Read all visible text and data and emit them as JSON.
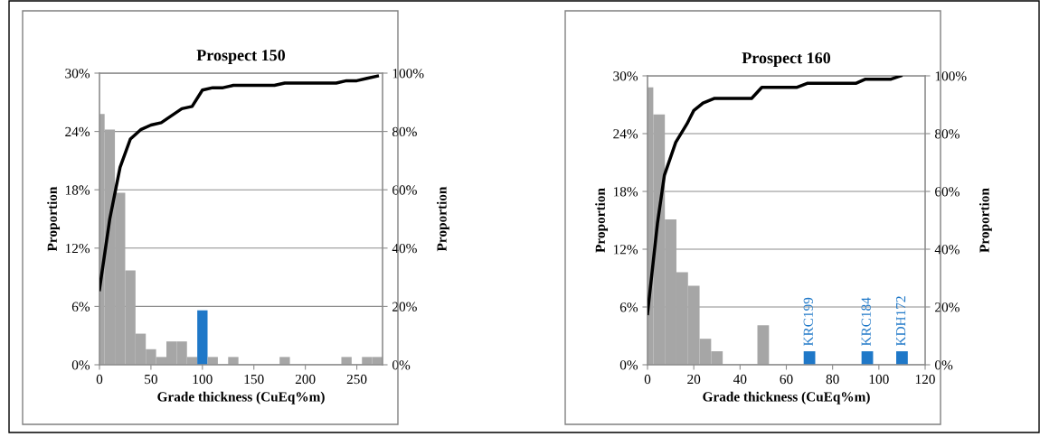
{
  "chart_data": [
    {
      "type": "histogram",
      "title": "Prospect 150",
      "xlabel": "Grade thickness (CuEq%m)",
      "ylabel": "Proportion",
      "y2label": "Proportion",
      "bins": [
        0,
        5,
        15,
        25,
        35,
        45,
        55,
        65,
        75,
        85,
        95,
        105,
        115,
        125,
        135,
        175,
        185,
        235,
        245,
        255,
        265,
        275
      ],
      "values": [
        25.8,
        24.2,
        17.7,
        9.7,
        3.2,
        1.6,
        0.8,
        2.4,
        2.4,
        0.8,
        5.6,
        0.8,
        0,
        0.8,
        0,
        0.8,
        0,
        0.8,
        0,
        0.8,
        0.8
      ],
      "colors": [
        "#a6a6a6",
        "#a6a6a6",
        "#a6a6a6",
        "#a6a6a6",
        "#a6a6a6",
        "#a6a6a6",
        "#a6a6a6",
        "#a6a6a6",
        "#a6a6a6",
        "#a6a6a6",
        "#1f78c8",
        "#a6a6a6",
        "#a6a6a6",
        "#a6a6a6",
        "#a6a6a6",
        "#a6a6a6",
        "#a6a6a6",
        "#a6a6a6",
        "#a6a6a6",
        "#a6a6a6",
        "#a6a6a6"
      ],
      "xlim": [
        0,
        275
      ],
      "xticks": [
        0,
        50,
        100,
        150,
        200,
        250
      ],
      "ylim": [
        0,
        30
      ],
      "yticks": [
        {
          "value": 0,
          "label": "0%"
        },
        {
          "value": 6,
          "label": "6%"
        },
        {
          "value": 12,
          "label": "12%"
        },
        {
          "value": 18,
          "label": "18%"
        },
        {
          "value": 24,
          "label": "24%"
        },
        {
          "value": 30,
          "label": "30%"
        }
      ],
      "y2lim": [
        0,
        100
      ],
      "y2ticks": [
        {
          "value": 0,
          "label": "0%"
        },
        {
          "value": 20,
          "label": "20%"
        },
        {
          "value": 40,
          "label": "40%"
        },
        {
          "value": 60,
          "label": "60%"
        },
        {
          "value": 80,
          "label": "80%"
        },
        {
          "value": 100,
          "label": "100%"
        }
      ],
      "grid": "y",
      "series": [
        {
          "type": "line",
          "axis": "y2",
          "color": "#000000",
          "x": [
            0,
            10,
            20,
            30,
            40,
            50,
            60,
            70,
            80,
            90,
            100,
            110,
            120,
            130,
            140,
            150,
            160,
            170,
            180,
            190,
            200,
            210,
            220,
            230,
            240,
            250,
            260,
            270
          ],
          "values": [
            25.8,
            50,
            67.7,
            77.4,
            80.6,
            82.2,
            83,
            85.4,
            87.8,
            88.6,
            94.2,
            95,
            95,
            95.8,
            95.8,
            95.8,
            95.8,
            95.8,
            96.6,
            96.6,
            96.6,
            96.6,
            96.6,
            96.6,
            97.4,
            97.4,
            98.2,
            99
          ]
        }
      ]
    },
    {
      "type": "histogram",
      "title": "Prospect 160",
      "xlabel": "Grade thickness (CuEq%m)",
      "ylabel": "Proportion",
      "y2label": "Proportion",
      "bins": [
        0,
        2.5,
        7.5,
        12.5,
        17.5,
        22.5,
        27.5,
        32.5,
        47.5,
        52.5,
        67.5,
        72.5,
        92.5,
        97.5,
        107.5,
        112.5
      ],
      "values": [
        28.8,
        26,
        15.1,
        9.6,
        8.2,
        2.7,
        1.4,
        0,
        4.1,
        0,
        1.4,
        0,
        1.4,
        0,
        1.4
      ],
      "colors": [
        "#a6a6a6",
        "#a6a6a6",
        "#a6a6a6",
        "#a6a6a6",
        "#a6a6a6",
        "#a6a6a6",
        "#a6a6a6",
        "#a6a6a6",
        "#a6a6a6",
        "#a6a6a6",
        "#1f78c8",
        "#a6a6a6",
        "#1f78c8",
        "#a6a6a6",
        "#1f78c8"
      ],
      "xlim": [
        0,
        120
      ],
      "xticks": [
        0,
        20,
        40,
        60,
        80,
        100,
        120
      ],
      "ylim": [
        0,
        30
      ],
      "yticks": [
        {
          "value": 0,
          "label": "0%"
        },
        {
          "value": 6,
          "label": "6%"
        },
        {
          "value": 12,
          "label": "12%"
        },
        {
          "value": 18,
          "label": "18%"
        },
        {
          "value": 24,
          "label": "24%"
        },
        {
          "value": 30,
          "label": "30%"
        }
      ],
      "y2lim": [
        0,
        100
      ],
      "y2ticks": [
        {
          "value": 0,
          "label": "0%"
        },
        {
          "value": 20,
          "label": "20%"
        },
        {
          "value": 40,
          "label": "40%"
        },
        {
          "value": 60,
          "label": "60%"
        },
        {
          "value": 80,
          "label": "80%"
        },
        {
          "value": 100,
          "label": "100%"
        }
      ],
      "grid": "y",
      "series": [
        {
          "type": "line",
          "axis": "y2",
          "color": "#000000",
          "x": [
            0,
            4.3,
            7.3,
            12.2,
            17,
            20,
            24,
            29,
            32,
            45,
            49.4,
            64.4,
            69,
            90,
            94,
            105,
            109.5
          ],
          "values": [
            17.7,
            49,
            65.6,
            77,
            83.3,
            88,
            90.6,
            92.2,
            92.2,
            92.2,
            96,
            96,
            97.4,
            97.4,
            98.8,
            98.8,
            100
          ]
        }
      ],
      "annotations": [
        {
          "text": "KRC199",
          "x": 70,
          "y": 1.4
        },
        {
          "text": "KRC184",
          "x": 95,
          "y": 1.4
        },
        {
          "text": "KDH172",
          "x": 110,
          "y": 1.4
        }
      ]
    }
  ]
}
